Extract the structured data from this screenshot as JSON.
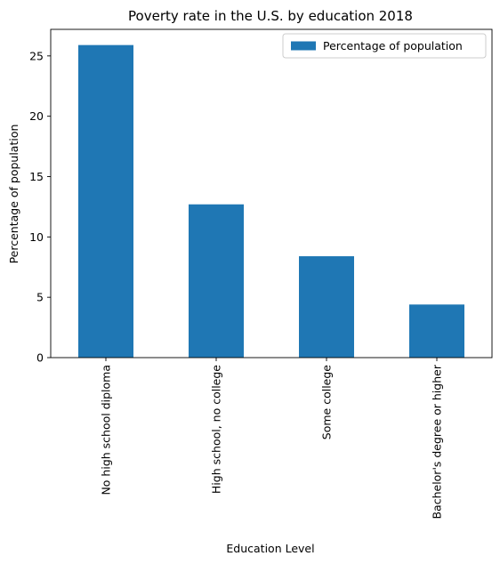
{
  "chart_data": {
    "type": "bar",
    "title": "Poverty rate in the U.S. by education 2018",
    "xlabel": "Education Level",
    "ylabel": "Percentage of population",
    "categories": [
      "No high school diploma",
      "High school, no college",
      "Some college",
      "Bachelor's degree or higher"
    ],
    "series": [
      {
        "name": "Percentage of population",
        "values": [
          25.9,
          12.7,
          8.4,
          4.4
        ],
        "color": "#1f77b4"
      }
    ],
    "ylim": [
      0,
      27.2
    ],
    "yticks": [
      0,
      5,
      10,
      15,
      20,
      25
    ],
    "grid": false,
    "legend_position": "top-right"
  }
}
